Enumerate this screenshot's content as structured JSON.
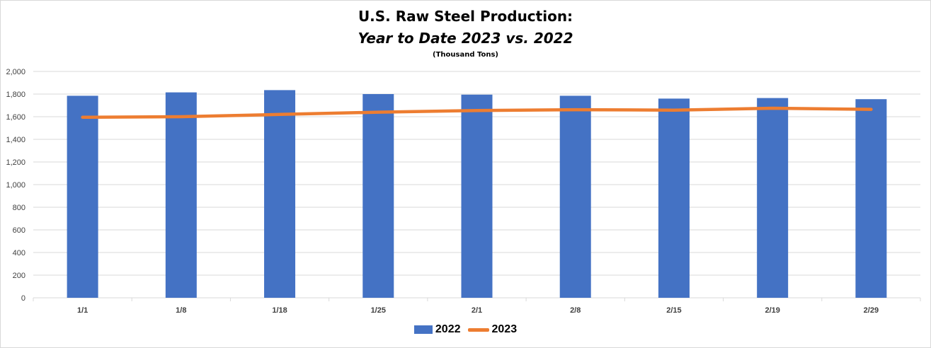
{
  "chart_data": {
    "type": "bar",
    "title": "U.S. Raw Steel Production:",
    "subtitle": "Year to Date 2023 vs. 2022",
    "units_label": "(Thousand Tons)",
    "categories": [
      "1/1",
      "1/8",
      "1/18",
      "1/25",
      "2/1",
      "2/8",
      "2/15",
      "2/19",
      "2/29"
    ],
    "series": [
      {
        "name": "2022",
        "type": "bar",
        "color": "#4472c4",
        "values": [
          1785,
          1815,
          1835,
          1800,
          1795,
          1785,
          1760,
          1765,
          1755
        ]
      },
      {
        "name": "2023",
        "type": "line",
        "color": "#ed7d31",
        "values": [
          1595,
          1600,
          1620,
          1640,
          1655,
          1662,
          1658,
          1675,
          1665
        ]
      }
    ],
    "ylim": [
      0,
      2000
    ],
    "yticks": [
      "0",
      "200",
      "400",
      "600",
      "800",
      "1,000",
      "1,200",
      "1,400",
      "1,600",
      "1,800",
      "2,000"
    ],
    "grid": true,
    "legend": "bottom"
  }
}
